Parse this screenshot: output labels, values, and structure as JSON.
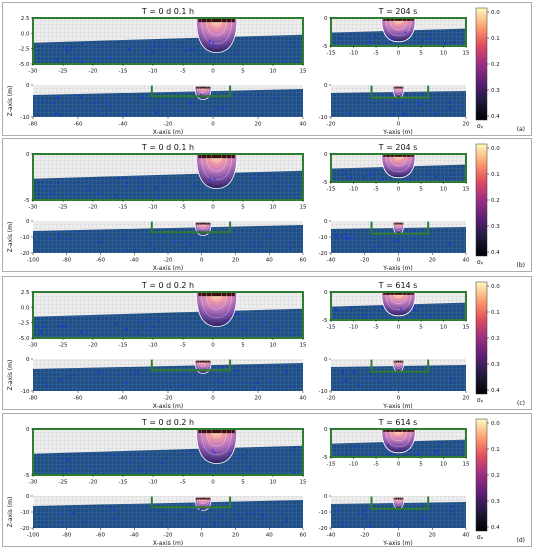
{
  "figure": {
    "colorbar": {
      "ticks": [
        "0.0",
        "0.1",
        "0.2",
        "0.3",
        "0.4"
      ],
      "label": "σₚ",
      "colors": [
        "#fcfdbf",
        "#fc9f6f",
        "#e04d5f",
        "#9b2f82",
        "#5b1e73",
        "#1d1b3b",
        "#000004"
      ]
    },
    "colors": {
      "sky": "#eeeeee",
      "grid": "#bbbbbb",
      "ground": "#1f4f86",
      "ground_grid": "#6f8fb0",
      "frame": "#2e7d32",
      "points": "#1a2cff",
      "panel_border": "#999999"
    },
    "panels": [
      {
        "id": "a",
        "letter": "(a)",
        "title_left": "T = 0 d  0.1 h",
        "title_right": "T = 204 s",
        "top_left_yticks": [
          "2.5",
          "0.0",
          "-2.5",
          "-5.0"
        ],
        "top_left_xticks": [
          "-30",
          "-25",
          "-20",
          "-15",
          "-10",
          "-5",
          "0",
          "5",
          "10",
          "15"
        ],
        "top_right_yticks": [
          "0",
          "-5"
        ],
        "top_right_xticks": [
          "-15",
          "-10",
          "-5",
          "0",
          "5",
          "10",
          "15"
        ],
        "bot_left_yticks": [
          "0",
          "-10"
        ],
        "bot_left_xticks": [
          "-80",
          "-60",
          "-40",
          "-20",
          "0",
          "20",
          "40"
        ],
        "bot_right_yticks": [
          "0",
          "-10"
        ],
        "bot_right_xticks": [
          "-20",
          "0",
          "20"
        ],
        "xlabel": "X-axis (m)",
        "ylabel": "Z-axis (m)",
        "rlabel": "Y-axis (m)"
      },
      {
        "id": "b",
        "letter": "(b)",
        "title_left": "T = 0 d  0.1 h",
        "title_right": "T = 204 s",
        "top_left_yticks": [
          "0",
          "-5"
        ],
        "top_left_xticks": [
          "-30",
          "-25",
          "-20",
          "-15",
          "-10",
          "-5",
          "0",
          "5",
          "10",
          "15"
        ],
        "top_right_yticks": [
          "0",
          "-5"
        ],
        "top_right_xticks": [
          "-15",
          "-10",
          "-5",
          "0",
          "5",
          "10",
          "15"
        ],
        "bot_left_yticks": [
          "0",
          "-10",
          "-20"
        ],
        "bot_left_xticks": [
          "-100",
          "-80",
          "-60",
          "-40",
          "-20",
          "0",
          "20",
          "40",
          "60"
        ],
        "bot_right_yticks": [
          "0",
          "-10",
          "-20"
        ],
        "bot_right_xticks": [
          "-40",
          "-20",
          "0",
          "20",
          "40"
        ],
        "xlabel": "X-axis (m)",
        "ylabel": "Z-axis (m)",
        "rlabel": "Y-axis (m)"
      },
      {
        "id": "c",
        "letter": "(c)",
        "title_left": "T = 0 d  0.2 h",
        "title_right": "T = 614 s",
        "top_left_yticks": [
          "2.5",
          "0.0",
          "-2.5",
          "-5.0"
        ],
        "top_left_xticks": [
          "-30",
          "-25",
          "-20",
          "-15",
          "-10",
          "-5",
          "0",
          "5",
          "10",
          "15"
        ],
        "top_right_yticks": [
          "0",
          "-5"
        ],
        "top_right_xticks": [
          "-15",
          "-10",
          "-5",
          "0",
          "5",
          "10",
          "15"
        ],
        "bot_left_yticks": [
          "0",
          "-10"
        ],
        "bot_left_xticks": [
          "-80",
          "-60",
          "-40",
          "-20",
          "0",
          "20",
          "40"
        ],
        "bot_right_yticks": [
          "0",
          "-10"
        ],
        "bot_right_xticks": [
          "-20",
          "0",
          "20"
        ],
        "xlabel": "X-axis (m)",
        "ylabel": "Z-axis (m)",
        "rlabel": "Y-axis (m)"
      },
      {
        "id": "d",
        "letter": "(d)",
        "title_left": "T = 0 d  0.2 h",
        "title_right": "T = 614 s",
        "top_left_yticks": [
          "0",
          "-5"
        ],
        "top_left_xticks": [
          "-30",
          "-25",
          "-20",
          "-15",
          "-10",
          "-5",
          "0",
          "5",
          "10",
          "15"
        ],
        "top_right_yticks": [
          "0",
          "-5"
        ],
        "top_right_xticks": [
          "-15",
          "-10",
          "-5",
          "0",
          "5",
          "10",
          "15"
        ],
        "bot_left_yticks": [
          "0",
          "-10",
          "-20"
        ],
        "bot_left_xticks": [
          "-100",
          "-80",
          "-60",
          "-40",
          "-20",
          "0",
          "20",
          "40",
          "60"
        ],
        "bot_right_yticks": [
          "0",
          "-10",
          "-20"
        ],
        "bot_right_xticks": [
          "-40",
          "-20",
          "0",
          "20",
          "40"
        ],
        "xlabel": "X-axis (m)",
        "ylabel": "Z-axis (m)",
        "rlabel": "Y-axis (m)"
      }
    ]
  },
  "chart_data": [
    {
      "type": "heatmap",
      "title": "T = 0 d  0.1 h",
      "xlabel": "X-axis (m)",
      "ylabel": "Z-axis (m)",
      "xlim": [
        -30,
        15
      ],
      "ylim": [
        -5,
        2.5
      ],
      "colorbar": {
        "label": "σₚ",
        "range": [
          0.0,
          0.4
        ]
      }
    },
    {
      "type": "heatmap",
      "title": "T = 204 s",
      "xlabel": "Y-axis (m)",
      "xlim": [
        -15,
        15
      ],
      "colorbar": {
        "label": "σₚ",
        "range": [
          0.0,
          0.4
        ]
      }
    },
    {
      "type": "heatmap",
      "title": "T = 0 d  0.2 h",
      "xlabel": "X-axis (m)",
      "ylabel": "Z-axis (m)",
      "xlim": [
        -30,
        15
      ],
      "ylim": [
        -5,
        2.5
      ],
      "colorbar": {
        "label": "σₚ",
        "range": [
          0.0,
          0.4
        ]
      }
    },
    {
      "type": "heatmap",
      "title": "T = 614 s",
      "xlabel": "Y-axis (m)",
      "xlim": [
        -15,
        15
      ],
      "colorbar": {
        "label": "σₚ",
        "range": [
          0.0,
          0.4
        ]
      }
    }
  ]
}
